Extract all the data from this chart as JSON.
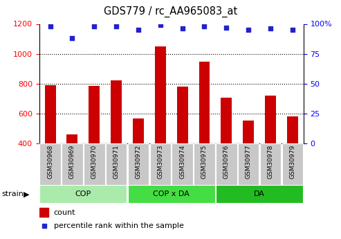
{
  "title": "GDS779 / rc_AA965083_at",
  "samples": [
    "GSM30968",
    "GSM30969",
    "GSM30970",
    "GSM30971",
    "GSM30972",
    "GSM30973",
    "GSM30974",
    "GSM30975",
    "GSM30976",
    "GSM30977",
    "GSM30978",
    "GSM30979"
  ],
  "counts": [
    790,
    460,
    785,
    820,
    565,
    1050,
    780,
    945,
    705,
    555,
    720,
    580
  ],
  "percentiles": [
    98,
    88,
    98,
    98,
    95,
    99,
    96,
    98,
    97,
    95,
    96,
    95
  ],
  "ylim_left": [
    400,
    1200
  ],
  "ylim_right": [
    0,
    100
  ],
  "yticks_left": [
    400,
    600,
    800,
    1000,
    1200
  ],
  "yticks_right": [
    0,
    25,
    50,
    75,
    100
  ],
  "bar_color": "#CC0000",
  "dot_color": "#2222CC",
  "bar_width": 0.5,
  "group_colors": [
    "#AAEAAA",
    "#44DD44",
    "#22BB22"
  ],
  "groups": [
    {
      "label": "COP",
      "start": 0,
      "end": 4
    },
    {
      "label": "COP x DA",
      "start": 4,
      "end": 8
    },
    {
      "label": "DA",
      "start": 8,
      "end": 12
    }
  ],
  "legend_count_label": "count",
  "legend_percentile_label": "percentile rank within the sample",
  "strain_label": "strain",
  "gridline_values": [
    600,
    800,
    1000
  ],
  "xlabel_bg": "#C8C8C8"
}
